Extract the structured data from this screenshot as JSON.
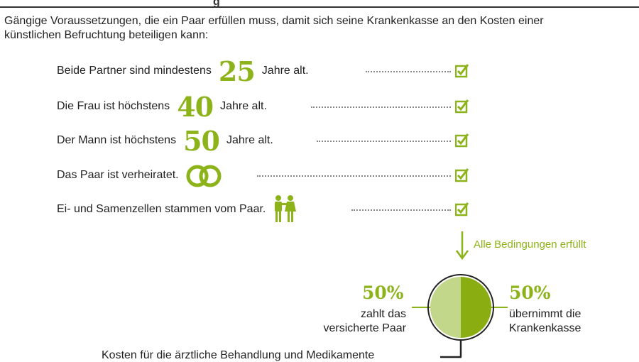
{
  "header": {
    "title_fragment": "g"
  },
  "intro": "Gängige Voraussetzungen, die ein Paar erfüllen muss, damit sich seine Krankenkasse an den Kosten einer künstlichen Befruchtung beteiligen kann:",
  "conditions": [
    {
      "before": "Beide Partner sind mindestens",
      "number": "25",
      "after": "Jahre alt.",
      "checked": true
    },
    {
      "before": "Die Frau ist höchstens",
      "number": "40",
      "after": "Jahre alt.",
      "checked": true
    },
    {
      "before": "Der Mann ist höchstens",
      "number": "50",
      "after": "Jahre alt.",
      "checked": true
    },
    {
      "before": "Das Paar ist verheiratet.",
      "icon": "wedding-rings-icon",
      "checked": true
    },
    {
      "before": "Ei- und Samenzellen stammen vom Paar.",
      "icon": "couple-icon",
      "checked": true
    }
  ],
  "result": "Alle Bedingungen erfüllt",
  "chart_data": {
    "type": "pie",
    "title": "Kosten für die ärztliche Behandlung und Medikamente",
    "slices": [
      {
        "label": "zahlt das versicherte Paar",
        "value": 50,
        "display": "50%",
        "color": "#c3d78b"
      },
      {
        "label": "übernimmt die Krankenkasse",
        "value": 50,
        "display": "50%",
        "color": "#8aad12"
      }
    ]
  },
  "left_label": [
    "zahlt das",
    "versicherte Paar"
  ],
  "right_label": [
    "übernimmt die",
    "Krankenkasse"
  ],
  "colors": {
    "accent": "#8db31a"
  }
}
